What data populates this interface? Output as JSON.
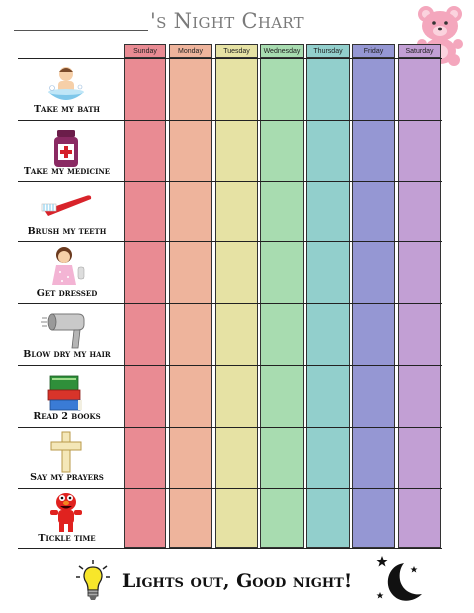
{
  "header": {
    "title": "'s Night Chart"
  },
  "days": [
    "Sunday",
    "Monday",
    "Tuesday",
    "Wednesday",
    "Thursday",
    "Friday",
    "Saturday"
  ],
  "day_colors": [
    "#e98b93",
    "#eeb49c",
    "#e6e2a4",
    "#a8dcb0",
    "#92cfcc",
    "#9597d3",
    "#c29fd4"
  ],
  "header_colors": [
    "#e98b93",
    "#eeb49c",
    "#e6e2a4",
    "#a8dcb0",
    "#92cfcc",
    "#9597d3",
    "#c29fd4"
  ],
  "tasks": [
    {
      "label": "Take my bath",
      "icon": "baby-bath-icon"
    },
    {
      "label": "Take my medicine",
      "icon": "medicine-bottle-icon"
    },
    {
      "label": "Brush my teeth",
      "icon": "toothbrush-icon"
    },
    {
      "label": "Get dressed",
      "icon": "girl-dressed-icon"
    },
    {
      "label": "Blow dry my hair",
      "icon": "hair-dryer-icon"
    },
    {
      "label": "Read 2 books",
      "icon": "books-icon"
    },
    {
      "label": "Say my prayers",
      "icon": "cross-icon"
    },
    {
      "label": "Tickle time",
      "icon": "elmo-icon"
    }
  ],
  "footer": {
    "text": "Lights out,  Good night!"
  },
  "decorations": {
    "bear": "teddy-bear-icon",
    "bulb": "light-bulb-icon",
    "moon": "moon-stars-icon"
  }
}
